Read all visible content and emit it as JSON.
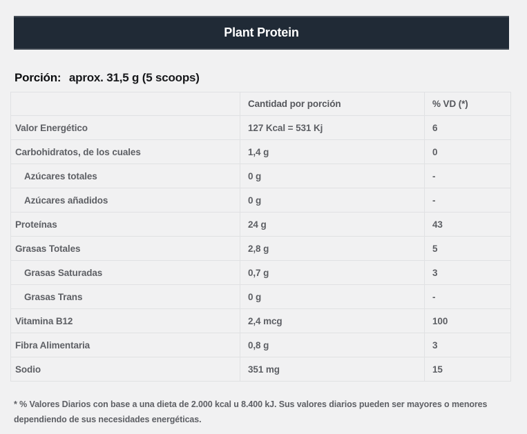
{
  "header": {
    "title": "Plant Protein",
    "bar_color": "#202A36",
    "text_color": "#FFFFFF"
  },
  "serving": {
    "label": "Porción:",
    "value": "aprox. 31,5 g (5 scoops)"
  },
  "table": {
    "columns": [
      "",
      "Cantidad por porción",
      "% VD (*)"
    ],
    "rows": [
      {
        "name": "Valor Energético",
        "amount": "127 Kcal = 531 Kj",
        "vd": "6"
      },
      {
        "name": "Carbohidratos, de los cuales",
        "amount": "1,4 g",
        "vd": "0"
      },
      {
        "name": "Azúcares totales",
        "amount": "0 g",
        "vd": "-"
      },
      {
        "name": "Azúcares añadidos",
        "amount": "0 g",
        "vd": "-"
      },
      {
        "name": "Proteínas",
        "amount": "24 g",
        "vd": "43"
      },
      {
        "name": "Grasas Totales",
        "amount": "2,8 g",
        "vd": "5"
      },
      {
        "name": "Grasas Saturadas",
        "amount": "0,7 g",
        "vd": "3"
      },
      {
        "name": "Grasas Trans",
        "amount": "0 g",
        "vd": "-"
      },
      {
        "name": "Vitamina B12",
        "amount": "2,4 mcg",
        "vd": "100"
      },
      {
        "name": "Fibra Alimentaria",
        "amount": "0,8 g",
        "vd": "3"
      },
      {
        "name": "Sodio",
        "amount": "351 mg",
        "vd": "15"
      }
    ]
  },
  "footnote": "* % Valores Diarios con base a una dieta de 2.000 kcal u 8.400 kJ. Sus valores diarios pueden ser mayores o menores dependiendo de sus necesidades energéticas.",
  "colors": {
    "page_background": "#F1F1F2",
    "table_border": "#E0E1E3",
    "table_text": "#5D5F64",
    "header_text": "#55575C"
  }
}
